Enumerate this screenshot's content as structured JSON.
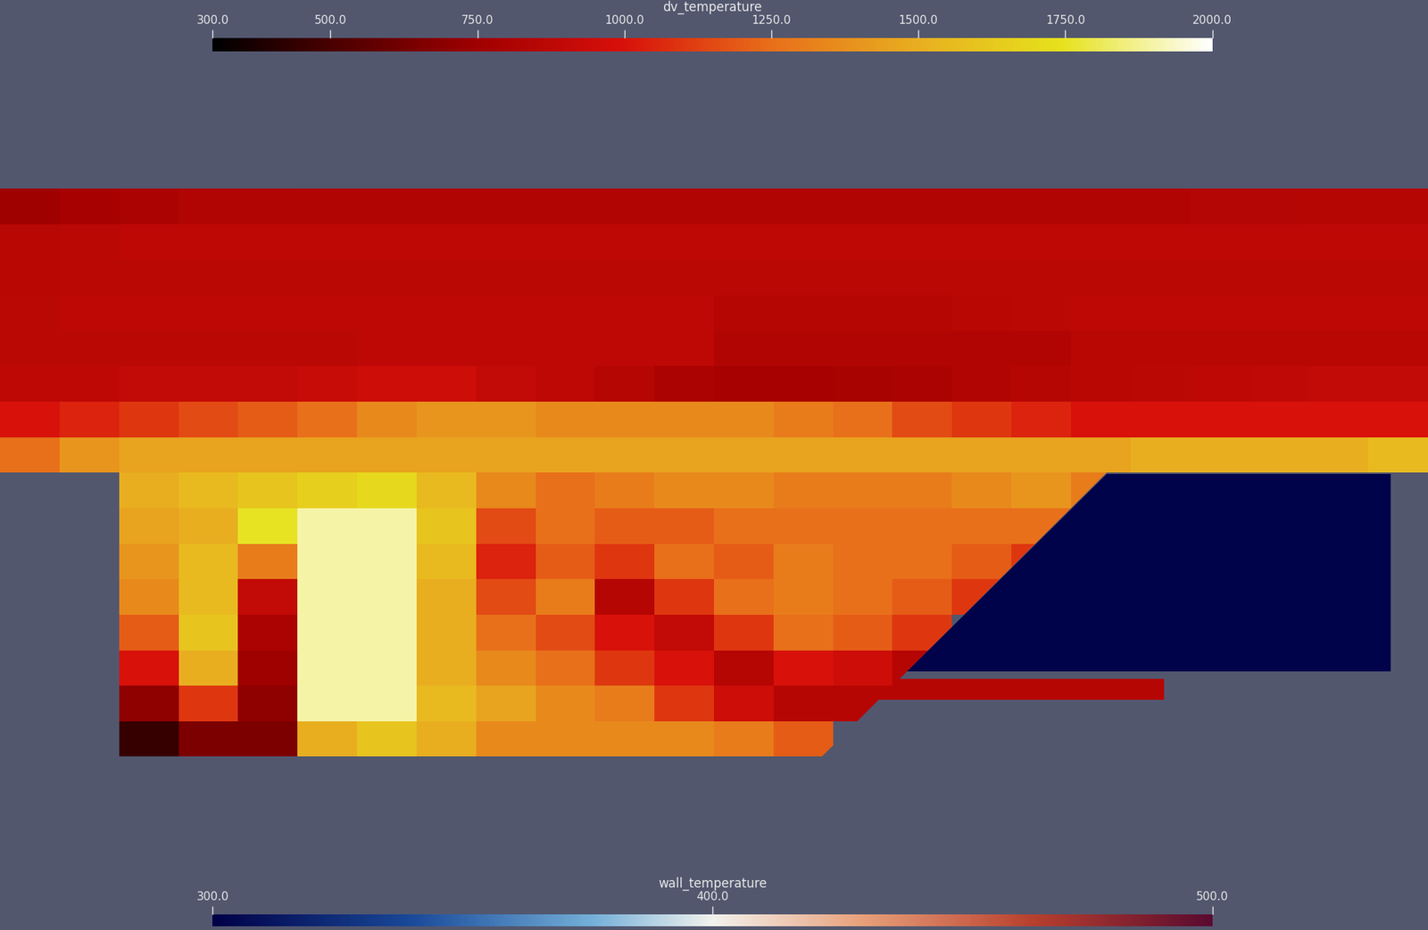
{
  "chart_data": {
    "type": "heatmap",
    "cells": [
      [
        750,
        780,
        800,
        820,
        820,
        830,
        830,
        830,
        830,
        830,
        830,
        830,
        830,
        830,
        830,
        830,
        830,
        830,
        830,
        830,
        840,
        840,
        850,
        850
      ],
      [
        860,
        870,
        880,
        880,
        880,
        880,
        880,
        880,
        880,
        880,
        880,
        880,
        880,
        880,
        880,
        880,
        880,
        880,
        880,
        880,
        880,
        880,
        880,
        880
      ],
      [
        860,
        870,
        870,
        870,
        870,
        870,
        870,
        870,
        870,
        870,
        870,
        870,
        870,
        870,
        870,
        870,
        870,
        870,
        870,
        870,
        870,
        870,
        870,
        870
      ],
      [
        870,
        880,
        880,
        880,
        880,
        880,
        880,
        880,
        880,
        880,
        880,
        880,
        850,
        850,
        850,
        850,
        860,
        870,
        880,
        880,
        880,
        880,
        880,
        880
      ],
      [
        870,
        870,
        870,
        870,
        870,
        870,
        880,
        880,
        880,
        880,
        880,
        880,
        820,
        820,
        820,
        820,
        820,
        820,
        860,
        860,
        860,
        860,
        860,
        860
      ],
      [
        880,
        880,
        900,
        900,
        900,
        920,
        950,
        950,
        900,
        880,
        850,
        800,
        780,
        780,
        790,
        800,
        820,
        850,
        860,
        870,
        880,
        890,
        900,
        900
      ],
      [
        1000,
        1050,
        1100,
        1150,
        1200,
        1250,
        1350,
        1400,
        1400,
        1350,
        1350,
        1350,
        1350,
        1300,
        1250,
        1150,
        1100,
        1050,
        1000,
        1000,
        1000,
        1000,
        1000,
        1000
      ],
      [
        1250,
        1400,
        1450,
        1450,
        1450,
        1450,
        1450,
        1450,
        1450,
        1450,
        1450,
        1450,
        1450,
        1450,
        1450,
        1450,
        1450,
        1450,
        1450,
        1500,
        1500,
        1500,
        1500,
        1550
      ],
      [
        null,
        null,
        1500,
        1550,
        1600,
        1650,
        1700,
        1550,
        1350,
        1250,
        1300,
        1350,
        1350,
        1300,
        1300,
        1300,
        1350,
        1400,
        1300,
        null,
        null,
        null,
        null,
        null
      ],
      [
        null,
        null,
        1450,
        1500,
        1750,
        1900,
        1900,
        1600,
        1150,
        1250,
        1200,
        1200,
        1250,
        1250,
        1250,
        1250,
        1250,
        1250,
        null,
        null,
        null,
        null,
        null,
        null
      ],
      [
        null,
        null,
        1400,
        1550,
        1300,
        1900,
        1900,
        1550,
        1050,
        1200,
        1100,
        1250,
        1200,
        1300,
        1250,
        1250,
        1200,
        1100,
        null,
        null,
        null,
        null,
        null,
        null
      ],
      [
        null,
        null,
        1350,
        1550,
        900,
        1900,
        1900,
        1500,
        1150,
        1300,
        850,
        1100,
        1250,
        1300,
        1250,
        1200,
        1100,
        null,
        null,
        null,
        null,
        null,
        null,
        null
      ],
      [
        null,
        null,
        1200,
        1600,
        800,
        1900,
        1900,
        1500,
        1250,
        1150,
        1000,
        900,
        1100,
        1250,
        1200,
        1100,
        null,
        null,
        null,
        null,
        null,
        null,
        null,
        null
      ],
      [
        null,
        null,
        1000,
        1500,
        750,
        1900,
        1900,
        1500,
        1350,
        1250,
        1100,
        1000,
        850,
        1000,
        950,
        850,
        850,
        850,
        850,
        850,
        null,
        null,
        null,
        null
      ],
      [
        null,
        null,
        700,
        1100,
        700,
        1900,
        1900,
        1550,
        1450,
        1350,
        1300,
        1100,
        950,
        850,
        850,
        850,
        850,
        850,
        850,
        850,
        null,
        null,
        null,
        null
      ],
      [
        null,
        null,
        450,
        650,
        650,
        1500,
        1600,
        1500,
        1350,
        1350,
        1350,
        1350,
        1300,
        1200,
        null,
        null,
        null,
        null,
        null,
        null,
        null,
        null,
        null,
        null
      ]
    ],
    "colorbar": {
      "label": "dv_temperature",
      "range": [
        300,
        2000
      ],
      "ticks": [
        {
          "value": 300,
          "label": "300.0"
        },
        {
          "value": 500,
          "label": "500.0"
        },
        {
          "value": 750,
          "label": "750.0"
        },
        {
          "value": 1000,
          "label": "1000.0"
        },
        {
          "value": 1250,
          "label": "1250.0"
        },
        {
          "value": 1500,
          "label": "1500.0"
        },
        {
          "value": 1750,
          "label": "1750.0"
        },
        {
          "value": 2000,
          "label": "2000.0"
        }
      ]
    },
    "wall_value": 302,
    "wall_colorbar": {
      "label": "wall_temperature",
      "range": [
        300,
        500
      ],
      "ticks": [
        {
          "value": 300,
          "label": "300.0"
        },
        {
          "value": 400,
          "label": "400.0"
        },
        {
          "value": 500,
          "label": "500.0"
        }
      ]
    }
  }
}
